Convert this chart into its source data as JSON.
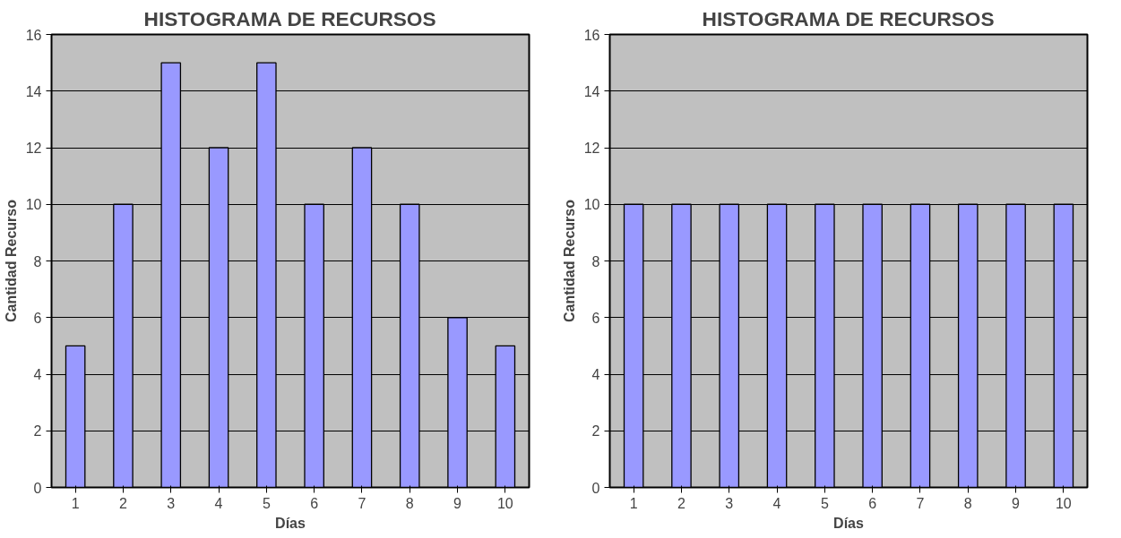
{
  "chart_data": [
    {
      "type": "bar",
      "title": "HISTOGRAMA DE RECURSOS",
      "xlabel": "Días",
      "ylabel": "Cantidad Recurso",
      "categories": [
        "1",
        "2",
        "3",
        "4",
        "5",
        "6",
        "7",
        "8",
        "9",
        "10"
      ],
      "values": [
        5,
        10,
        15,
        12,
        15,
        10,
        12,
        10,
        6,
        5
      ],
      "color": "#9999ff",
      "ylim": [
        0,
        16
      ],
      "yticks": [
        0,
        2,
        4,
        6,
        8,
        10,
        12,
        14,
        16
      ],
      "grid": "y"
    },
    {
      "type": "bar",
      "title": "HISTOGRAMA DE RECURSOS",
      "xlabel": "Días",
      "ylabel": "Cantidad Recurso",
      "categories": [
        "1",
        "2",
        "3",
        "4",
        "5",
        "6",
        "7",
        "8",
        "9",
        "10"
      ],
      "values": [
        10,
        10,
        10,
        10,
        10,
        10,
        10,
        10,
        10,
        10
      ],
      "color": "#9999ff",
      "ylim": [
        0,
        16
      ],
      "yticks": [
        0,
        2,
        4,
        6,
        8,
        10,
        12,
        14,
        16
      ],
      "grid": "y"
    }
  ]
}
